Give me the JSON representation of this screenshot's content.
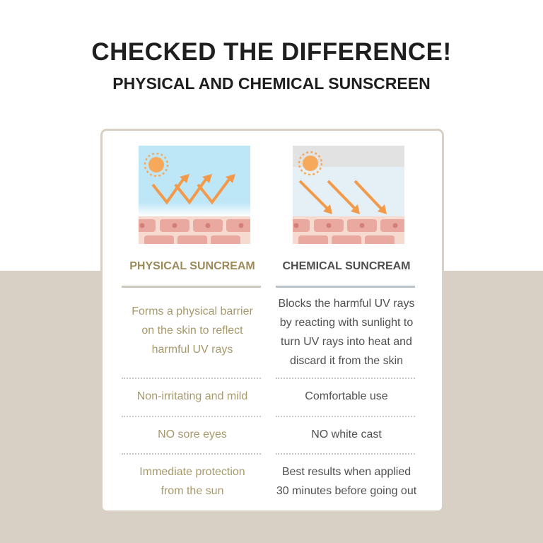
{
  "header": {
    "title": "CHECKED THE DIFFERENCE!",
    "subtitle": "PHYSICAL AND CHEMICAL SUNSCREEN"
  },
  "colors": {
    "bottom_background": "#d8d0c4",
    "physical_accent": "#9c8a5a",
    "chemical_text": "#4e4e4e",
    "arrow": "#f39a4a",
    "sun": "#f6a95a"
  },
  "physical": {
    "heading": "PHYSICAL SUNCREAM",
    "illustration": "uv-reflect-icon",
    "description": [
      "Forms a physical barrier",
      "on the skin to reflect",
      "harmful UV rays"
    ],
    "rows": [
      [
        "Non-irritating and mild"
      ],
      [
        "NO sore eyes"
      ],
      [
        "Immediate protection",
        "from the sun"
      ]
    ]
  },
  "chemical": {
    "heading": "CHEMICAL SUNCREAM",
    "illustration": "uv-absorb-icon",
    "description": [
      "Blocks the harmful UV rays",
      "by reacting with sunlight to",
      "turn UV rays into heat and",
      "discard it from the skin"
    ],
    "rows": [
      [
        "Comfortable use"
      ],
      [
        "NO white cast"
      ],
      [
        "Best results when applied",
        "30 minutes before going out"
      ]
    ]
  }
}
